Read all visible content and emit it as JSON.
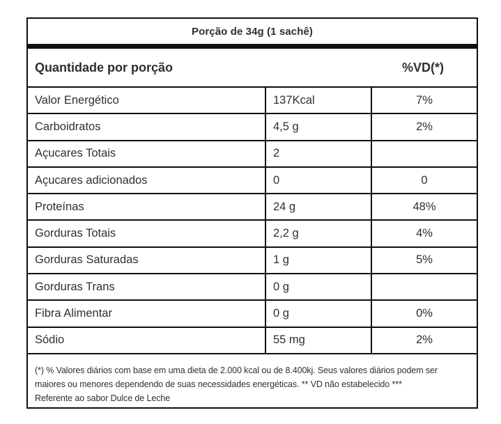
{
  "serving_label": "Porção de 34g (1 sachê)",
  "header": {
    "quantity_label": "Quantidade por porção",
    "dv_label": "%VD(*)"
  },
  "rows": [
    {
      "label": "Valor Energético",
      "amount": "137Kcal",
      "vd": "7%"
    },
    {
      "label": "Carboidratos",
      "amount": "4,5 g",
      "vd": "2%"
    },
    {
      "label": "Açucares Totais",
      "amount": "2",
      "vd": ""
    },
    {
      "label": "Açucares adicionados",
      "amount": "0",
      "vd": "0"
    },
    {
      "label": "Proteínas",
      "amount": "24 g",
      "vd": "48%"
    },
    {
      "label": "Gorduras Totais",
      "amount": "2,2 g",
      "vd": "4%"
    },
    {
      "label": "Gorduras Saturadas",
      "amount": "1 g",
      "vd": "5%"
    },
    {
      "label": "Gorduras Trans",
      "amount": "0 g",
      "vd": ""
    },
    {
      "label": "Fibra Alimentar",
      "amount": "0 g",
      "vd": "0%"
    },
    {
      "label": "Sódio",
      "amount": "55 mg",
      "vd": "2%"
    }
  ],
  "footnote_lines": [
    "(*) % Valores diários com base em uma dieta de 2.000 kcal ou de 8.400kj. Seus valores diários podem ser",
    "maiores ou menores dependendo de suas necessidades energéticas. ** VD não estabelecido ***",
    "Referente ao sabor Dulce de Leche"
  ],
  "colors": {
    "text": "#2e2e38",
    "border": "#0f0f13",
    "background": "#ffffff"
  }
}
